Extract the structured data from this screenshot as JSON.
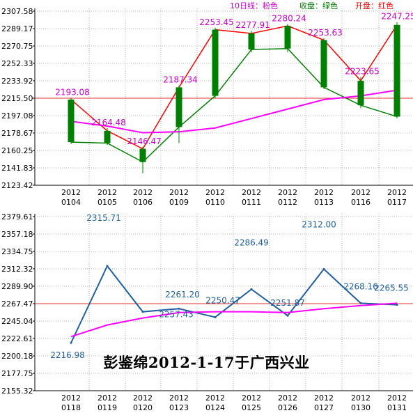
{
  "caption": "彭鉴绵2012-1-17于广西兴业",
  "legend": {
    "ma10": "10日线：粉色",
    "close": "收盘：绿色",
    "open": "开盘：红色"
  },
  "colors": {
    "ma10": "#ff00ff",
    "close": "#008000",
    "open": "#ff0000",
    "reference": "#e03030",
    "grid": "#b0b0b0",
    "labels_top": "#cc00cc",
    "labels_bottom": "#1f5f9f",
    "bottom_line": "#1f5f9f"
  },
  "chart_data": [
    {
      "type": "candlestick",
      "title": "",
      "x_label_line1": [
        "2012",
        "2012",
        "2012",
        "2012",
        "2012",
        "2012",
        "2012",
        "2012",
        "2012",
        "2012"
      ],
      "categories": [
        "0104",
        "0105",
        "0106",
        "0109",
        "0110",
        "0111",
        "0112",
        "0113",
        "0116",
        "0117"
      ],
      "y_ticks": [
        "2307.58",
        "2289.17",
        "2270.75",
        "2252.33",
        "2233.92",
        "2215.50",
        "2197.08",
        "2178.67",
        "2160.25",
        "2141.83",
        "2123.42"
      ],
      "ylim": [
        2123.42,
        2307.58
      ],
      "reference_line": 2215.5,
      "open": [
        2214,
        2181,
        2162,
        2227,
        2288,
        2284,
        2292,
        2277,
        2234,
        2293
      ],
      "close": [
        2169,
        2168,
        2148,
        2185,
        2218,
        2267,
        2268,
        2227,
        2208,
        2196
      ],
      "high": [
        2216,
        2184,
        2164,
        2229,
        2290,
        2287,
        2294,
        2279,
        2238,
        2296
      ],
      "low": [
        2167,
        2166,
        2136,
        2168,
        2216,
        2264,
        2264,
        2225,
        2205,
        2194
      ],
      "ma10": [
        2191,
        2186,
        2179,
        2180,
        2184,
        2194,
        2204,
        2214,
        2218,
        2224
      ],
      "value_labels": [
        "2193.08",
        "2164.48",
        "2146.47",
        "2187.34",
        "2253.45",
        "2277.91",
        "2280.24",
        "2253.63",
        "2223.65",
        "2247.25"
      ]
    },
    {
      "type": "line",
      "title": "",
      "x_label_line1": [
        "2012",
        "2012",
        "2012",
        "2012",
        "2012",
        "2012",
        "2012",
        "2012",
        "2012",
        "2012"
      ],
      "categories": [
        "0118",
        "0119",
        "0120",
        "0123",
        "0124",
        "0125",
        "0126",
        "0127",
        "0130",
        "0131"
      ],
      "y_ticks": [
        "2379.61",
        "2357.18",
        "2334.75",
        "2312.32",
        "2289.90",
        "2267.47",
        "2245.04",
        "2222.61",
        "2200.18",
        "2177.75",
        "2155.32"
      ],
      "ylim": [
        2155.32,
        2379.61
      ],
      "reference_line": 2267.47,
      "values": [
        2217,
        2316,
        2257,
        2261,
        2250,
        2286,
        2252,
        2312,
        2268,
        2266
      ],
      "ma10": [
        2225,
        2240,
        2249,
        2256,
        2257,
        2257,
        2256,
        2261,
        2265,
        2268
      ],
      "value_labels": [
        "2216.98",
        "2315.71",
        "2257.43",
        "2261.20",
        "2250.47",
        "2286.49",
        "2251.87",
        "2312.00",
        "2268.16",
        "2265.55"
      ]
    }
  ]
}
